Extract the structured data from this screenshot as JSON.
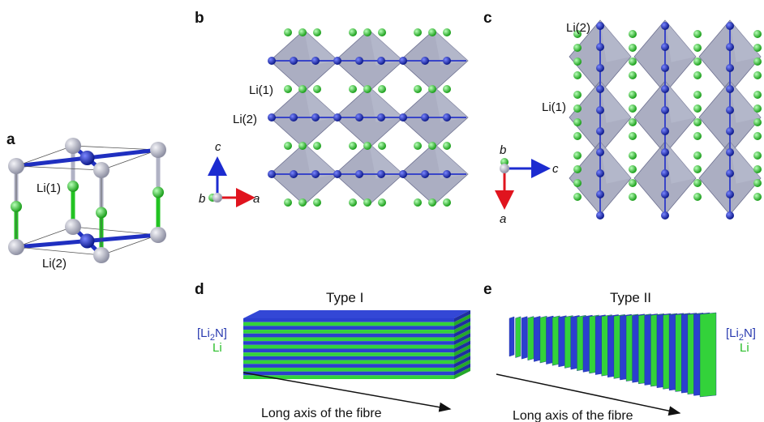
{
  "panels": [
    {
      "label": "a",
      "atom_labels": [
        "Li(1)",
        "Li(2)"
      ]
    },
    {
      "label": "b",
      "atom_labels": [
        "Li(1)",
        "Li(2)"
      ],
      "axes": [
        "c",
        "b",
        "a"
      ]
    },
    {
      "label": "c",
      "atom_labels": [
        "Li(2)",
        "Li(1)"
      ],
      "axes": [
        "b",
        "c",
        "a"
      ]
    },
    {
      "label": "d",
      "title": "Type I",
      "legend": {
        "layer": [
          "[Li",
          "2",
          "N]"
        ],
        "spacer": "Li"
      },
      "arrow_label": "Long axis of the fibre"
    },
    {
      "label": "e",
      "title": "Type II",
      "legend": {
        "layer": [
          "[Li",
          "2",
          "N]"
        ],
        "spacer": "Li"
      },
      "arrow_label": "Long axis of the fibre"
    }
  ]
}
